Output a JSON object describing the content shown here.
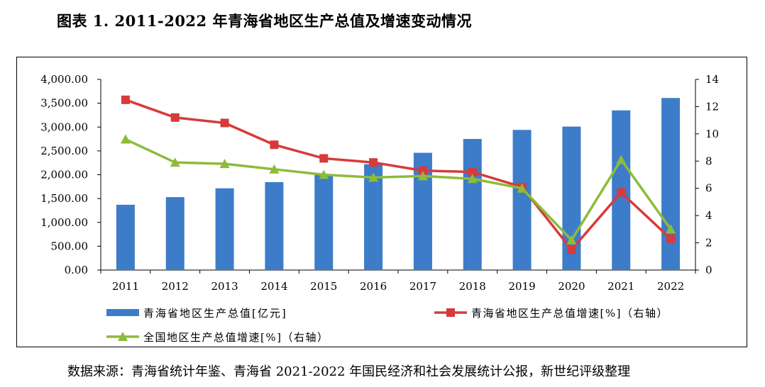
{
  "title": "图表 1. 2011-2022 年青海省地区生产总值及增速变动情况",
  "source": "数据来源：青海省统计年鉴、青海省 2021-2022 年国民经济和社会发展统计公报，新世纪评级整理",
  "chart_data": {
    "type": "bar",
    "categories": [
      "2011",
      "2012",
      "2013",
      "2014",
      "2015",
      "2016",
      "2017",
      "2018",
      "2019",
      "2020",
      "2021",
      "2022"
    ],
    "series": [
      {
        "name": "青海省地区生产总值[亿元]",
        "kind": "bar",
        "axis": "left",
        "color": "#3d7cc9",
        "values": [
          1370,
          1530,
          1715,
          1845,
          2010,
          2220,
          2460,
          2750,
          2940,
          3010,
          3350,
          3610
        ]
      },
      {
        "name": "青海省地区生产总值增速[%]（右轴）",
        "kind": "line",
        "axis": "right",
        "color": "#d63b3b",
        "values": [
          12.5,
          11.2,
          10.8,
          9.2,
          8.2,
          7.9,
          7.3,
          7.2,
          6.1,
          1.5,
          5.7,
          2.3
        ]
      },
      {
        "name": "全国地区生产总值增速[%]（右轴）",
        "kind": "line",
        "axis": "right",
        "color": "#8dbb3a",
        "values": [
          9.6,
          7.9,
          7.8,
          7.4,
          7.0,
          6.8,
          6.9,
          6.7,
          6.0,
          2.2,
          8.1,
          3.0
        ]
      }
    ],
    "y_left": {
      "min": 0,
      "max": 4000,
      "step": 500,
      "tick_labels": [
        "0.00",
        "500.00",
        "1,000.00",
        "1,500.00",
        "2,000.00",
        "2,500.00",
        "3,000.00",
        "3,500.00",
        "4,000.00"
      ]
    },
    "y_right": {
      "min": 0,
      "max": 14,
      "step": 2,
      "tick_labels": [
        "0",
        "2",
        "4",
        "6",
        "8",
        "10",
        "12",
        "14"
      ]
    },
    "legend_position": "bottom",
    "grid": false
  }
}
